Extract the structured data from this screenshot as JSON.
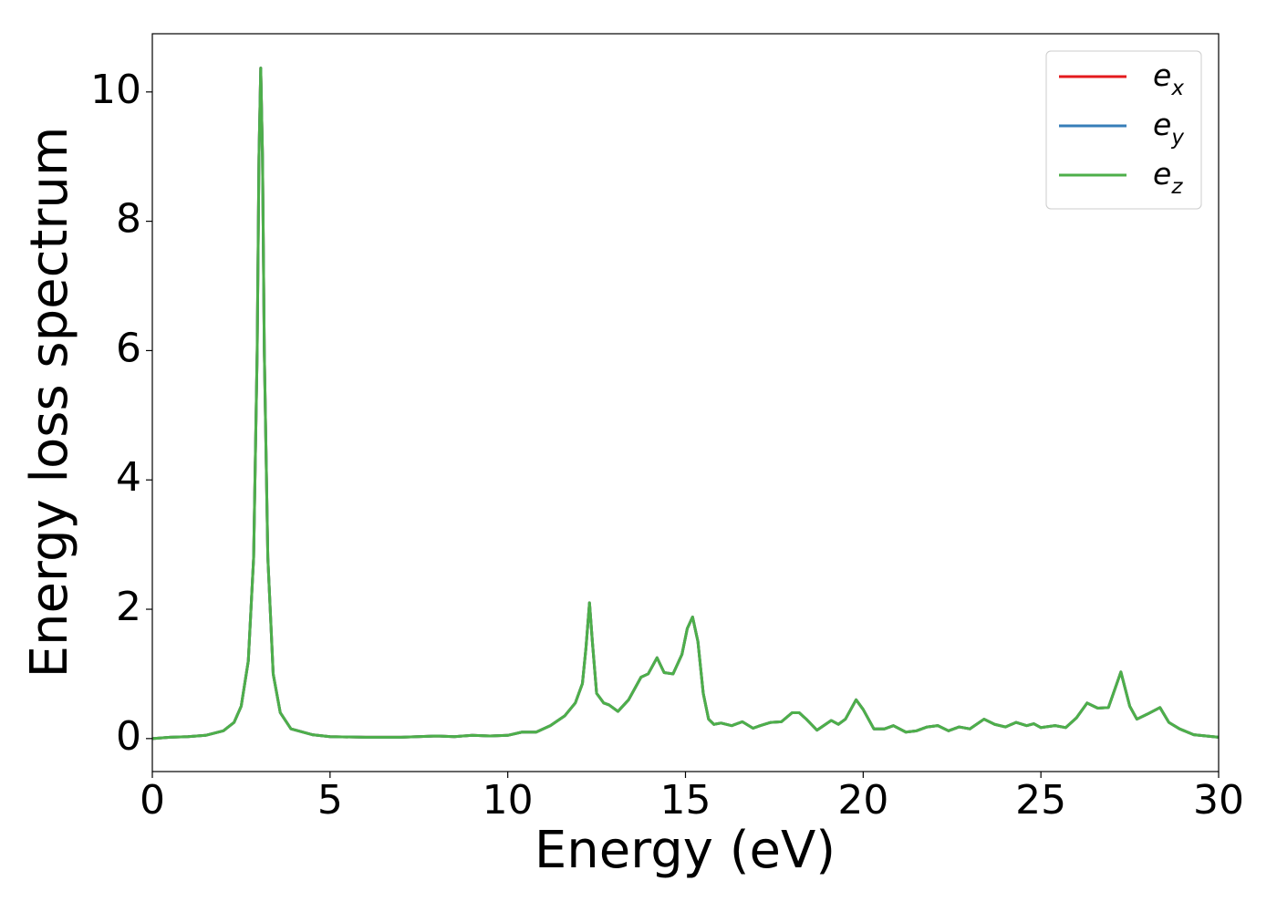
{
  "chart_data": {
    "type": "line",
    "xlabel": "Energy (eV)",
    "ylabel": "Energy loss spectrum",
    "x": [
      0,
      0.5,
      1,
      1.5,
      2,
      2.3,
      2.5,
      2.7,
      2.85,
      2.95,
      3.0,
      3.05,
      3.1,
      3.15,
      3.25,
      3.4,
      3.6,
      3.9,
      4.5,
      5,
      6,
      7,
      8,
      8.5,
      9,
      9.5,
      10,
      10.4,
      10.8,
      11.2,
      11.6,
      11.9,
      12.1,
      12.2,
      12.3,
      12.38,
      12.5,
      12.7,
      12.85,
      13.1,
      13.4,
      13.75,
      13.95,
      14.2,
      14.4,
      14.65,
      14.9,
      15.05,
      15.2,
      15.35,
      15.5,
      15.65,
      15.8,
      16.0,
      16.3,
      16.6,
      16.9,
      17.1,
      17.4,
      17.7,
      18.0,
      18.2,
      18.4,
      18.7,
      19.1,
      19.3,
      19.5,
      19.8,
      20.0,
      20.3,
      20.6,
      20.85,
      21.2,
      21.5,
      21.8,
      22.1,
      22.4,
      22.7,
      23.0,
      23.4,
      23.7,
      24.0,
      24.3,
      24.6,
      24.8,
      25.0,
      25.4,
      25.7,
      26.0,
      26.3,
      26.6,
      26.9,
      27.25,
      27.5,
      27.7,
      28.0,
      28.35,
      28.6,
      28.9,
      29.3,
      30
    ],
    "series": [
      {
        "name": "e_x",
        "color": "#e41a1c",
        "values": [
          0,
          0.02,
          0.03,
          0.05,
          0.12,
          0.25,
          0.5,
          1.2,
          2.8,
          6,
          9,
          10.37,
          9,
          6,
          2.8,
          1.0,
          0.4,
          0.15,
          0.06,
          0.03,
          0.02,
          0.02,
          0.04,
          0.03,
          0.05,
          0.04,
          0.05,
          0.1,
          0.1,
          0.2,
          0.35,
          0.55,
          0.85,
          1.4,
          2.1,
          1.5,
          0.7,
          0.55,
          0.52,
          0.42,
          0.6,
          0.95,
          1.0,
          1.25,
          1.02,
          1.0,
          1.3,
          1.7,
          1.88,
          1.5,
          0.7,
          0.3,
          0.22,
          0.24,
          0.2,
          0.26,
          0.16,
          0.2,
          0.25,
          0.26,
          0.4,
          0.4,
          0.3,
          0.13,
          0.28,
          0.22,
          0.3,
          0.6,
          0.45,
          0.15,
          0.15,
          0.2,
          0.1,
          0.12,
          0.18,
          0.2,
          0.12,
          0.18,
          0.15,
          0.3,
          0.22,
          0.18,
          0.25,
          0.2,
          0.23,
          0.17,
          0.2,
          0.17,
          0.32,
          0.55,
          0.47,
          0.48,
          1.03,
          0.5,
          0.3,
          0.38,
          0.48,
          0.25,
          0.15,
          0.06,
          0.02
        ]
      },
      {
        "name": "e_y",
        "color": "#377eb8",
        "values": [
          0,
          0.02,
          0.03,
          0.05,
          0.12,
          0.25,
          0.5,
          1.2,
          2.8,
          6,
          9,
          10.37,
          9,
          6,
          2.8,
          1.0,
          0.4,
          0.15,
          0.06,
          0.03,
          0.02,
          0.02,
          0.04,
          0.03,
          0.05,
          0.04,
          0.05,
          0.1,
          0.1,
          0.2,
          0.35,
          0.55,
          0.85,
          1.4,
          2.1,
          1.5,
          0.7,
          0.55,
          0.52,
          0.42,
          0.6,
          0.95,
          1.0,
          1.25,
          1.02,
          1.0,
          1.3,
          1.7,
          1.88,
          1.5,
          0.7,
          0.3,
          0.22,
          0.24,
          0.2,
          0.26,
          0.16,
          0.2,
          0.25,
          0.26,
          0.4,
          0.4,
          0.3,
          0.13,
          0.28,
          0.22,
          0.3,
          0.6,
          0.45,
          0.15,
          0.15,
          0.2,
          0.1,
          0.12,
          0.18,
          0.2,
          0.12,
          0.18,
          0.15,
          0.3,
          0.22,
          0.18,
          0.25,
          0.2,
          0.23,
          0.17,
          0.2,
          0.17,
          0.32,
          0.55,
          0.47,
          0.48,
          1.03,
          0.5,
          0.3,
          0.38,
          0.48,
          0.25,
          0.15,
          0.06,
          0.02
        ]
      },
      {
        "name": "e_z",
        "color": "#4daf4a",
        "values": [
          0,
          0.02,
          0.03,
          0.05,
          0.12,
          0.25,
          0.5,
          1.2,
          2.8,
          6,
          9,
          10.37,
          9,
          6,
          2.8,
          1.0,
          0.4,
          0.15,
          0.06,
          0.03,
          0.02,
          0.02,
          0.04,
          0.03,
          0.05,
          0.04,
          0.05,
          0.1,
          0.1,
          0.2,
          0.35,
          0.55,
          0.85,
          1.4,
          2.1,
          1.5,
          0.7,
          0.55,
          0.52,
          0.42,
          0.6,
          0.95,
          1.0,
          1.25,
          1.02,
          1.0,
          1.3,
          1.7,
          1.88,
          1.5,
          0.7,
          0.3,
          0.22,
          0.24,
          0.2,
          0.26,
          0.16,
          0.2,
          0.25,
          0.26,
          0.4,
          0.4,
          0.3,
          0.13,
          0.28,
          0.22,
          0.3,
          0.6,
          0.45,
          0.15,
          0.15,
          0.2,
          0.1,
          0.12,
          0.18,
          0.2,
          0.12,
          0.18,
          0.15,
          0.3,
          0.22,
          0.18,
          0.25,
          0.2,
          0.23,
          0.17,
          0.2,
          0.17,
          0.32,
          0.55,
          0.47,
          0.48,
          1.03,
          0.5,
          0.3,
          0.38,
          0.48,
          0.25,
          0.15,
          0.06,
          0.02
        ]
      }
    ],
    "xlim": [
      0,
      30
    ],
    "xticks": [
      0,
      5,
      10,
      15,
      20,
      25,
      30
    ],
    "ylim": [
      -0.51,
      10.9
    ],
    "yticks": [
      0,
      2,
      4,
      6,
      8,
      10
    ],
    "legend": "upper right",
    "grid": false
  }
}
